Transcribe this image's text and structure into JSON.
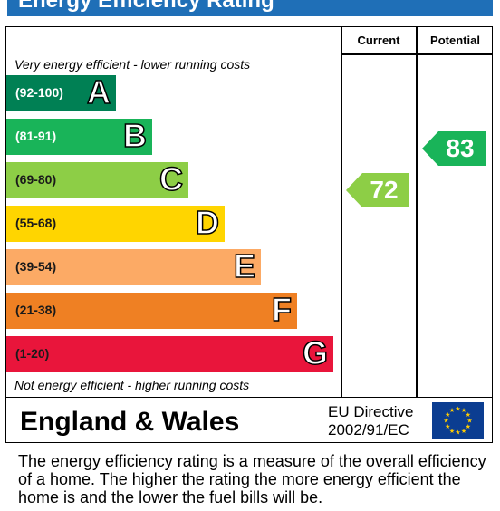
{
  "title": "Energy Efficiency Rating",
  "columns": {
    "current": "Current",
    "potential": "Potential"
  },
  "top_note": "Very energy efficient - lower running costs",
  "bottom_note": "Not energy efficient - higher running costs",
  "bands": [
    {
      "range": "(92-100)",
      "letter": "A",
      "color": "#008054",
      "text_color": "#ffffff"
    },
    {
      "range": "(81-91)",
      "letter": "B",
      "color": "#19b459",
      "text_color": "#ffffff"
    },
    {
      "range": "(69-80)",
      "letter": "C",
      "color": "#8dce46",
      "text_color": "#1a1a1a"
    },
    {
      "range": "(55-68)",
      "letter": "D",
      "color": "#ffd500",
      "text_color": "#1a1a1a"
    },
    {
      "range": "(39-54)",
      "letter": "E",
      "color": "#fcaa65",
      "text_color": "#1a1a1a"
    },
    {
      "range": "(21-38)",
      "letter": "F",
      "color": "#ef8023",
      "text_color": "#1a1a1a"
    },
    {
      "range": "(1-20)",
      "letter": "G",
      "color": "#e9153b",
      "text_color": "#1a1a1a"
    }
  ],
  "current": {
    "value": "72",
    "band": "C",
    "color": "#8dce46"
  },
  "potential": {
    "value": "83",
    "band": "B",
    "color": "#19b459"
  },
  "region": "England & Wales",
  "directive": {
    "line1": "EU Directive",
    "line2": "2002/91/EC"
  },
  "flag_icon": "eu-flag-icon",
  "description": "The energy efficiency rating is a measure of the overall efficiency of a home.  The higher the rating the more energy efficient the home is and the lower the fuel bills will be."
}
